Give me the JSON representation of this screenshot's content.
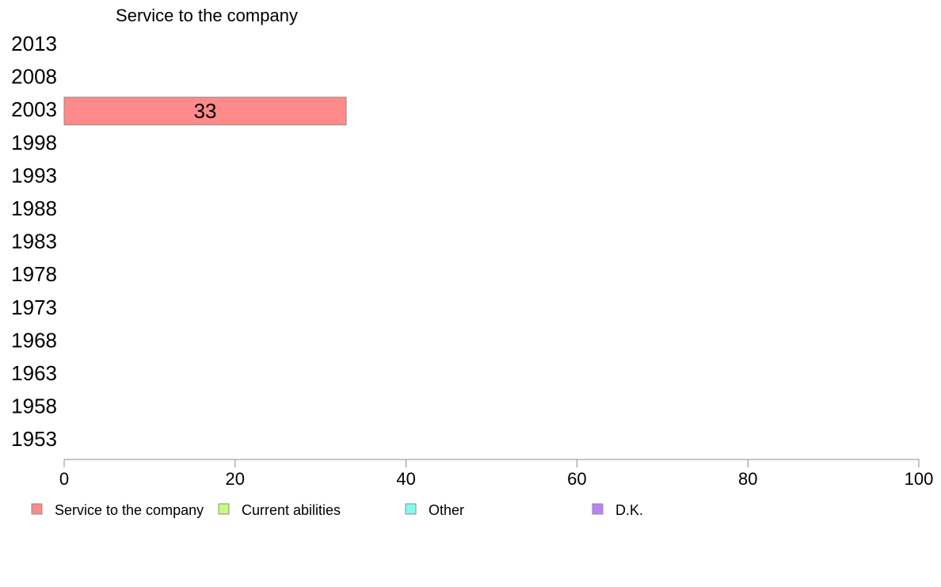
{
  "chart_data": {
    "type": "bar",
    "orientation": "horizontal",
    "title": "Service to the company",
    "categories": [
      "2013",
      "2008",
      "2003",
      "1998",
      "1993",
      "1988",
      "1983",
      "1978",
      "1973",
      "1968",
      "1963",
      "1958",
      "1953"
    ],
    "series": [
      {
        "name": "Service to the company",
        "color": "#ff8a8a",
        "values": [
          null,
          null,
          33,
          null,
          null,
          null,
          null,
          null,
          null,
          null,
          null,
          null,
          null
        ]
      },
      {
        "name": "Current abilities",
        "color": "#c4ff7a",
        "values": [
          null,
          null,
          null,
          null,
          null,
          null,
          null,
          null,
          null,
          null,
          null,
          null,
          null
        ]
      },
      {
        "name": "Other",
        "color": "#7effee",
        "values": [
          null,
          null,
          null,
          null,
          null,
          null,
          null,
          null,
          null,
          null,
          null,
          null,
          null
        ]
      },
      {
        "name": "D.K.",
        "color": "#b784f5",
        "values": [
          null,
          null,
          null,
          null,
          null,
          null,
          null,
          null,
          null,
          null,
          null,
          null,
          null
        ]
      }
    ],
    "data_labels": [
      null,
      null,
      "33",
      null,
      null,
      null,
      null,
      null,
      null,
      null,
      null,
      null,
      null
    ],
    "xlim": [
      0,
      100
    ],
    "xticks": [
      "0",
      "20",
      "40",
      "60",
      "80",
      "100"
    ],
    "grid": false,
    "legend_position": "bottom"
  }
}
